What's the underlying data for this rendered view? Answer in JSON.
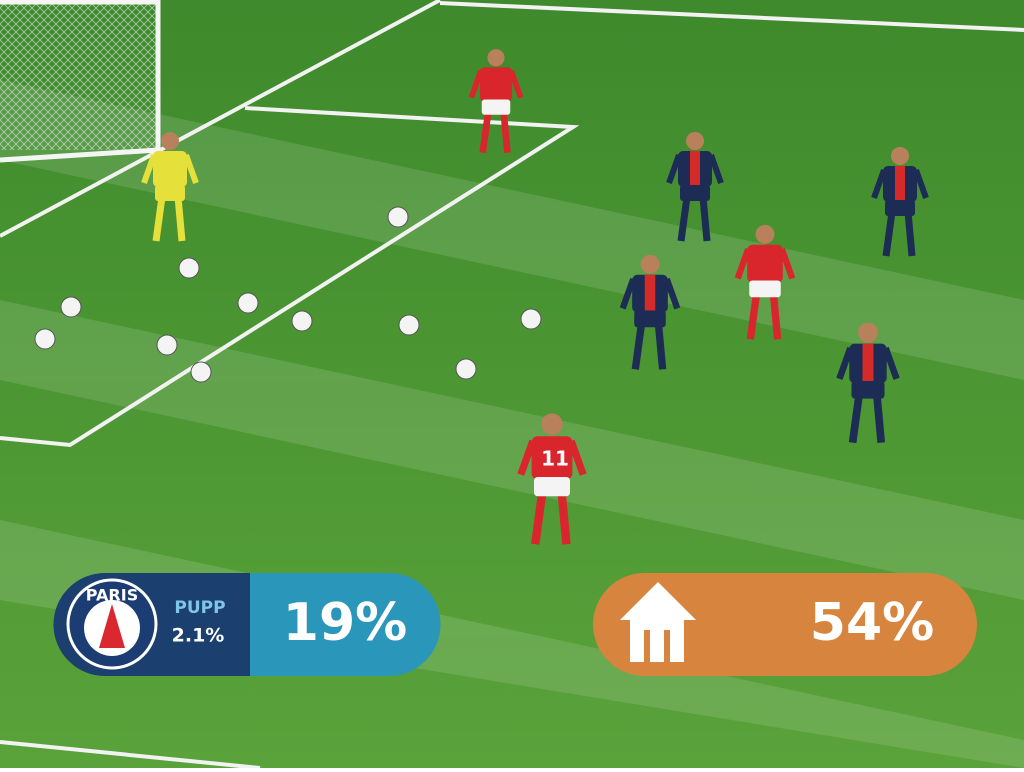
{
  "overlays": {
    "left": {
      "crest_text": "PARIS",
      "label": "PUPP",
      "sub": "2.1%",
      "value": "19%"
    },
    "right": {
      "value": "54%"
    }
  },
  "jersey_number": "11"
}
